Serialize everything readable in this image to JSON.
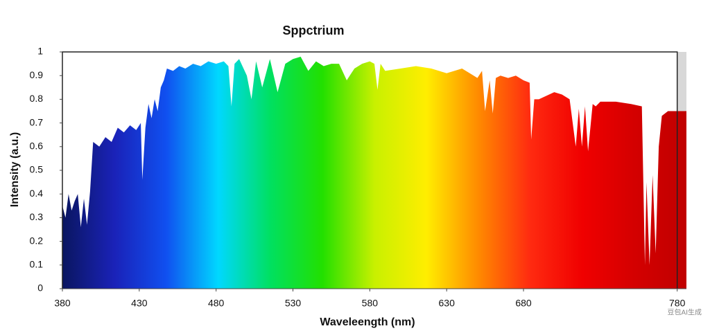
{
  "chart_data": {
    "type": "area",
    "title": "Sppctrium",
    "x_label": "Waveleength (nm)",
    "y_label": "Intensity (a.u.)",
    "watermark": "豆包AI生成",
    "x": [
      380,
      382,
      384,
      386,
      388,
      390,
      392,
      394,
      396,
      398,
      400,
      404,
      408,
      412,
      416,
      420,
      424,
      428,
      431,
      432,
      434,
      436,
      438,
      440,
      442,
      444,
      446,
      448,
      452,
      456,
      460,
      465,
      470,
      475,
      480,
      485,
      488,
      490,
      492,
      495,
      500,
      503,
      506,
      510,
      515,
      520,
      525,
      530,
      535,
      540,
      545,
      550,
      555,
      560,
      565,
      570,
      575,
      580,
      583,
      585,
      587,
      590,
      600,
      610,
      620,
      630,
      640,
      645,
      650,
      653,
      655,
      658,
      660,
      662,
      665,
      670,
      675,
      680,
      684,
      685,
      687,
      690,
      700,
      705,
      710,
      714,
      716,
      718,
      720,
      722,
      725,
      727,
      730,
      740,
      750,
      757,
      759,
      760,
      762,
      764,
      766,
      768,
      770,
      774,
      778,
      786
    ],
    "values": [
      0.35,
      0.3,
      0.4,
      0.33,
      0.37,
      0.4,
      0.26,
      0.38,
      0.27,
      0.41,
      0.62,
      0.6,
      0.64,
      0.62,
      0.68,
      0.66,
      0.69,
      0.67,
      0.7,
      0.46,
      0.68,
      0.78,
      0.72,
      0.8,
      0.75,
      0.85,
      0.88,
      0.93,
      0.92,
      0.94,
      0.93,
      0.95,
      0.94,
      0.96,
      0.95,
      0.96,
      0.94,
      0.77,
      0.95,
      0.97,
      0.9,
      0.8,
      0.96,
      0.85,
      0.97,
      0.83,
      0.95,
      0.97,
      0.98,
      0.92,
      0.96,
      0.94,
      0.95,
      0.95,
      0.88,
      0.93,
      0.95,
      0.96,
      0.95,
      0.84,
      0.95,
      0.92,
      0.93,
      0.94,
      0.93,
      0.91,
      0.93,
      0.91,
      0.89,
      0.92,
      0.75,
      0.88,
      0.74,
      0.89,
      0.9,
      0.89,
      0.9,
      0.88,
      0.87,
      0.63,
      0.8,
      0.8,
      0.83,
      0.82,
      0.8,
      0.6,
      0.76,
      0.6,
      0.77,
      0.58,
      0.78,
      0.77,
      0.79,
      0.79,
      0.78,
      0.77,
      0.1,
      0.45,
      0.1,
      0.48,
      0.15,
      0.6,
      0.73,
      0.75,
      0.75,
      0.75
    ],
    "gradient_colors": [
      "#0a1660",
      "#1a22b8",
      "#1050f0",
      "#00d8ff",
      "#00e060",
      "#22e000",
      "#c8f000",
      "#ffee00",
      "#ff8a00",
      "#ff2a10",
      "#f00000",
      "#d40000",
      "#c00000"
    ],
    "xlim": [
      380,
      786
    ],
    "ylim": [
      0,
      1
    ],
    "xticks": [
      380,
      430,
      480,
      530,
      580,
      630,
      680,
      780
    ],
    "yticks": [
      0,
      0.1,
      0.2,
      0.3,
      0.4,
      0.5,
      0.6,
      0.7,
      0.8,
      0.9,
      1
    ],
    "grid": false
  }
}
